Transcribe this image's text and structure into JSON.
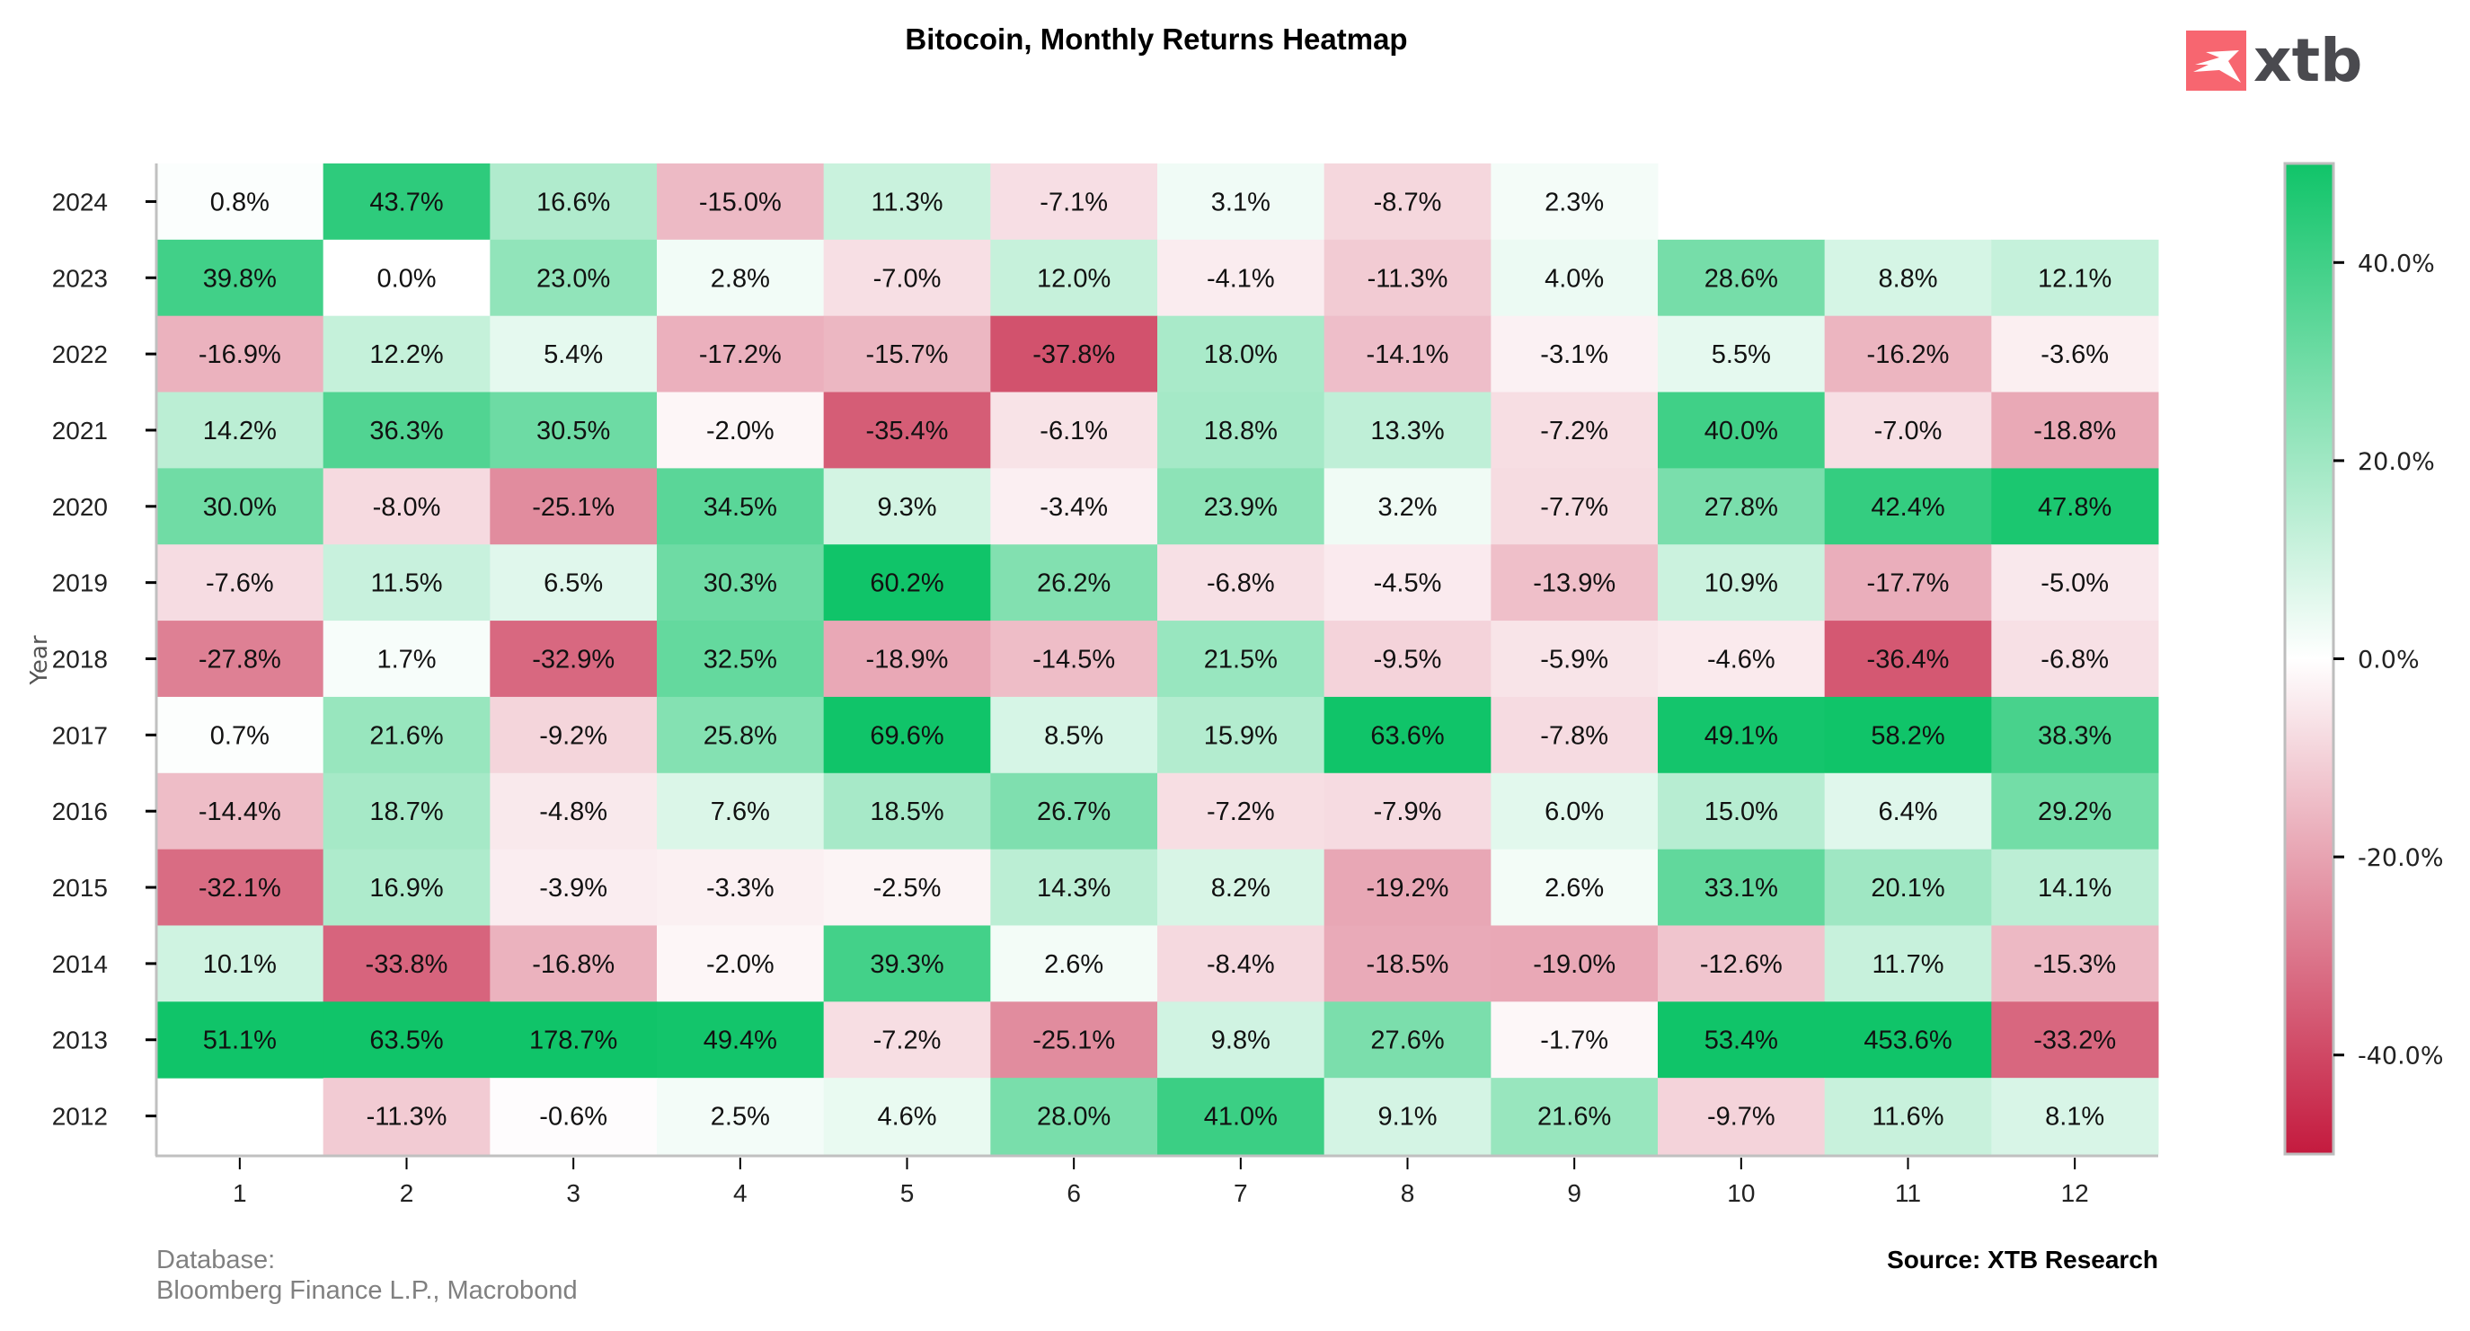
{
  "chart_data": {
    "type": "heatmap",
    "title": "Bitocoin, Monthly Returns Heatmap",
    "xlabel": "",
    "ylabel": "Year",
    "x_categories": [
      "1",
      "2",
      "3",
      "4",
      "5",
      "6",
      "7",
      "8",
      "9",
      "10",
      "11",
      "12"
    ],
    "y_categories": [
      "2024",
      "2023",
      "2022",
      "2021",
      "2020",
      "2019",
      "2018",
      "2017",
      "2016",
      "2015",
      "2014",
      "2013",
      "2012"
    ],
    "values": [
      [
        0.8,
        43.7,
        16.6,
        -15.0,
        11.3,
        -7.1,
        3.1,
        -8.7,
        2.3,
        null,
        null,
        null
      ],
      [
        39.8,
        0.0,
        23.0,
        2.8,
        -7.0,
        12.0,
        -4.1,
        -11.3,
        4.0,
        28.6,
        8.8,
        12.1
      ],
      [
        -16.9,
        12.2,
        5.4,
        -17.2,
        -15.7,
        -37.8,
        18.0,
        -14.1,
        -3.1,
        5.5,
        -16.2,
        -3.6
      ],
      [
        14.2,
        36.3,
        30.5,
        -2.0,
        -35.4,
        -6.1,
        18.8,
        13.3,
        -7.2,
        40.0,
        -7.0,
        -18.8
      ],
      [
        30.0,
        -8.0,
        -25.1,
        34.5,
        9.3,
        -3.4,
        23.9,
        3.2,
        -7.7,
        27.8,
        42.4,
        47.8
      ],
      [
        -7.6,
        11.5,
        6.5,
        30.3,
        60.2,
        26.2,
        -6.8,
        -4.5,
        -13.9,
        10.9,
        -17.7,
        -5.0
      ],
      [
        -27.8,
        1.7,
        -32.9,
        32.5,
        -18.9,
        -14.5,
        21.5,
        -9.5,
        -5.9,
        -4.6,
        -36.4,
        -6.8
      ],
      [
        0.7,
        21.6,
        -9.2,
        25.8,
        69.6,
        8.5,
        15.9,
        63.6,
        -7.8,
        49.1,
        58.2,
        38.3
      ],
      [
        -14.4,
        18.7,
        -4.8,
        7.6,
        18.5,
        26.7,
        -7.2,
        -7.9,
        6.0,
        15.0,
        6.4,
        29.2
      ],
      [
        -32.1,
        16.9,
        -3.9,
        -3.3,
        -2.5,
        14.3,
        8.2,
        -19.2,
        2.6,
        33.1,
        20.1,
        14.1
      ],
      [
        10.1,
        -33.8,
        -16.8,
        -2.0,
        39.3,
        2.6,
        -8.4,
        -18.5,
        -19.0,
        -12.6,
        11.7,
        -15.3
      ],
      [
        51.1,
        63.5,
        178.7,
        49.4,
        -7.2,
        -25.1,
        9.8,
        27.6,
        -1.7,
        53.4,
        453.6,
        -33.2
      ],
      [
        null,
        -11.3,
        -0.6,
        2.5,
        4.6,
        28.0,
        41.0,
        9.1,
        21.6,
        -9.7,
        11.6,
        8.1
      ]
    ],
    "value_format": "percent_1dp",
    "color_scale": {
      "min": -50,
      "max": 50,
      "colors": [
        "#C41A3E",
        "#FFFFFF",
        "#10C469"
      ],
      "ticks": [
        40,
        20,
        0,
        -20,
        -40
      ],
      "tick_labels": [
        "40.0%",
        "20.0%",
        "0.0%",
        "-20.0%",
        "-40.0%"
      ]
    },
    "legend": "colorbar-right",
    "grid": false
  },
  "footer": {
    "database_label": "Database:",
    "database_sources": "Bloomberg Finance L.P., Macrobond",
    "source": "Source: XTB Research"
  },
  "logo": {
    "text": "xtb",
    "brand_color": "#F76670"
  }
}
